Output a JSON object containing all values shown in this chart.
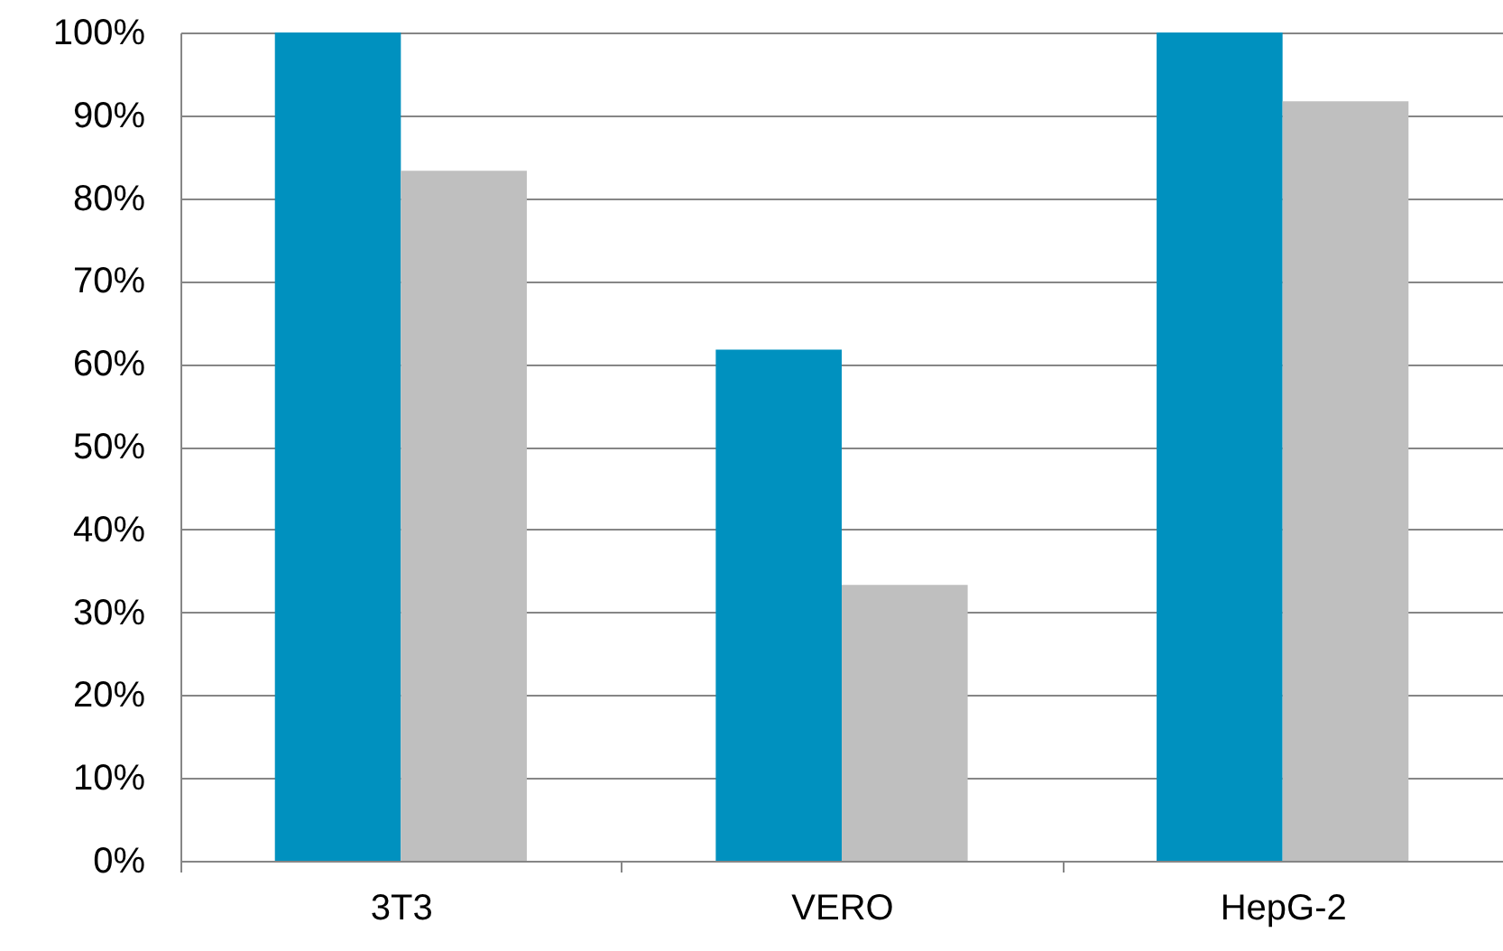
{
  "chart_data": {
    "type": "bar",
    "categories": [
      "3T3",
      "VERO",
      "HepG-2"
    ],
    "series": [
      {
        "color": "#0091bf",
        "values": [
          100,
          61.7,
          100
        ]
      },
      {
        "color": "#bfbfbf",
        "values": [
          83.3,
          33.3,
          91.7
        ]
      }
    ],
    "ylim": [
      0,
      100
    ],
    "yticks": [
      {
        "value": 0,
        "label": "0%"
      },
      {
        "value": 10,
        "label": "10%"
      },
      {
        "value": 20,
        "label": "20%"
      },
      {
        "value": 30,
        "label": "30%"
      },
      {
        "value": 40,
        "label": "40%"
      },
      {
        "value": 50,
        "label": "50%"
      },
      {
        "value": 60,
        "label": "60%"
      },
      {
        "value": 70,
        "label": "70%"
      },
      {
        "value": 80,
        "label": "80%"
      },
      {
        "value": 90,
        "label": "90%"
      },
      {
        "value": 100,
        "label": "100%"
      }
    ],
    "grid": "y"
  }
}
